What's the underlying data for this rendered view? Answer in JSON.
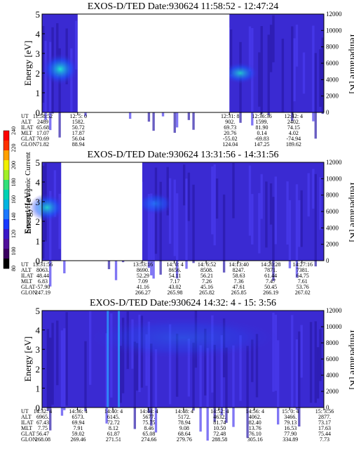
{
  "chart_data": [
    {
      "type": "heatmap",
      "title": "EXOS-D/TED   Date:930624  11:58:52 - 12:47:24",
      "ylabel": "Energy [eV]",
      "y2label": "Temperature [K]",
      "ylim": [
        0,
        5
      ],
      "y2lim": [
        0,
        12000
      ],
      "yticks": [
        "0",
        "1",
        "2",
        "3",
        "4",
        "5"
      ],
      "y2ticks": [
        "0",
        "2000",
        "4000",
        "6000",
        "8000",
        "10000",
        "12000"
      ],
      "time_range": [
        "11:58:52",
        "12:47:24"
      ],
      "data_gaps": [
        [
          "12:05:00",
          "12:31:08"
        ]
      ],
      "enhancements": [
        {
          "time": "12:02",
          "energy_center": 2.2,
          "width": 1.0,
          "level": 1.0
        },
        {
          "time": "12:33",
          "energy_center": 2.0,
          "width": 0.7,
          "level": 0.85
        }
      ],
      "ephemeris": {
        "labels": [
          "UT",
          "ALT",
          "ILAT",
          "MLT",
          "GLAT",
          "GLON"
        ],
        "columns": [
          [
            "11:58:52",
            "2489",
            "65.68",
            "17.07",
            "70.69",
            "71.82"
          ],
          [
            "12: 5: 0",
            "1582.",
            "50.72",
            "17.87",
            "56.04",
            "88.94"
          ],
          [
            "12:31: 8",
            "902.",
            "69.73",
            "20.76",
            "-55.02",
            "124.04"
          ],
          [
            "12:36:36",
            "1599.",
            "81.90",
            "0.14",
            "-69.83",
            "147.25"
          ],
          [
            "12:42: 4",
            "2402.",
            "74.15",
            "4.02",
            "-74.94",
            "189.62"
          ]
        ]
      }
    },
    {
      "type": "heatmap",
      "title": "EXOS-D/TED   Date:930624  13:31:56 - 14:31:56",
      "ylabel": "Energy [eV]",
      "y2label": "Temperature [K]",
      "ylim": [
        0,
        5
      ],
      "y2lim": [
        0,
        12000
      ],
      "yticks": [
        "0",
        "1",
        "2",
        "3",
        "4",
        "5"
      ],
      "y2ticks": [
        "0",
        "2000",
        "4000",
        "6000",
        "8000",
        "10000",
        "12000"
      ],
      "time_range": [
        "13:31:56",
        "14:31:56"
      ],
      "data_gaps": [
        [
          "13:36:00",
          "13:53:16"
        ]
      ],
      "enhancements": [
        {
          "time": "13:33",
          "energy_center": 2.7,
          "width": 0.9,
          "level": 0.9
        },
        {
          "time": "13:56",
          "energy_center": 2.9,
          "width": 0.7,
          "level": 0.7
        }
      ],
      "ephemeris": {
        "labels": [
          "UT",
          "ALT",
          "ILAT",
          "MLT",
          "GLAT",
          "GLON"
        ],
        "columns": [
          [
            "13:31:56",
            "8063.",
            "48.44",
            "6.83",
            "-57.90",
            "247.19"
          ],
          [
            "13:53:16",
            "8690.",
            "52.29",
            "7.09",
            "41.16",
            "266.27"
          ],
          [
            "14: 0: 4",
            "8656.",
            "54.11",
            "7.17",
            "43.02",
            "265.98"
          ],
          [
            "14: 6:52",
            "8508.",
            "56.21",
            "7.26",
            "45.16",
            "265.82"
          ],
          [
            "14:13:40",
            "8247.",
            "58.63",
            "7.36",
            "47.61",
            "265.85"
          ],
          [
            "14:20:28",
            "7871.",
            "61.44",
            "7.47",
            "50.45",
            "266.19"
          ],
          [
            "14:27:16",
            "7381.",
            "64.75",
            "7.61",
            "53.76",
            "267.02"
          ]
        ]
      }
    },
    {
      "type": "heatmap",
      "title": "EXOS-D/TED   Date:930624  14:32: 4 - 15: 3:56",
      "ylabel": "Energy [eV]",
      "y2label": "Temperature [K]",
      "ylim": [
        0,
        5
      ],
      "y2lim": [
        0,
        12000
      ],
      "yticks": [
        "0",
        "1",
        "2",
        "3",
        "4",
        "5"
      ],
      "y2ticks": [
        "0",
        "2000",
        "4000",
        "6000",
        "8000",
        "10000",
        "12000"
      ],
      "time_range": [
        "14:32:04",
        "15:03:56"
      ],
      "data_gaps": [],
      "enhancements": [
        {
          "time": "14:48",
          "energy_center": 3.6,
          "width": 1.4,
          "level": 0.35
        }
      ],
      "ephemeris": {
        "labels": [
          "UT",
          "ALT",
          "ILAT",
          "MLT",
          "GLAT",
          "GLON"
        ],
        "columns": [
          [
            "14:32: 4",
            "6965.",
            "67.43",
            "7.75",
            "56.47",
            "268.08"
          ],
          [
            "14:36: 4",
            "6573.",
            "69.94",
            "7.91",
            "59.02",
            "269.46"
          ],
          [
            "14:40: 4",
            "6145.",
            "72.72",
            "8.12",
            "61.87",
            "271.51"
          ],
          [
            "14:44: 4",
            "5677.",
            "75.75",
            "8.46",
            "65.08",
            "274.66"
          ],
          [
            "14:48: 4",
            "5172.",
            "78.94",
            "9.08",
            "68.64",
            "279.76"
          ],
          [
            "14:52: 4",
            "4632.",
            "81.74",
            "10.50",
            "72.48",
            "288.58"
          ],
          [
            "14:56: 4",
            "4062.",
            "82.40",
            "13.76",
            "76.10",
            "305.16"
          ],
          [
            "15: 0: 4",
            "3466.",
            "79.13",
            "16.53",
            "77.90",
            "334.89"
          ],
          [
            "15: 3:56",
            "2877.",
            "73.17",
            "17.63",
            "75.44",
            "7.73"
          ]
        ]
      }
    }
  ],
  "colorbar": {
    "label": "Second Harmonic Current",
    "ticks": [
      "80",
      "100",
      "120",
      "140",
      "160",
      "180",
      "200",
      "220",
      "240"
    ],
    "colors": [
      "#000000",
      "#3a0060",
      "#50109a",
      "#3a18c8",
      "#1838ff",
      "#1a78ff",
      "#00b4e0",
      "#00d2b4",
      "#32e078",
      "#a0f028",
      "#f0f000",
      "#ffa000",
      "#ff3000",
      "#ff0000"
    ]
  },
  "palette": {
    "bg": "#3a2ad2",
    "bg_dark": "#2a1aa8",
    "gap": "#ffffff"
  }
}
